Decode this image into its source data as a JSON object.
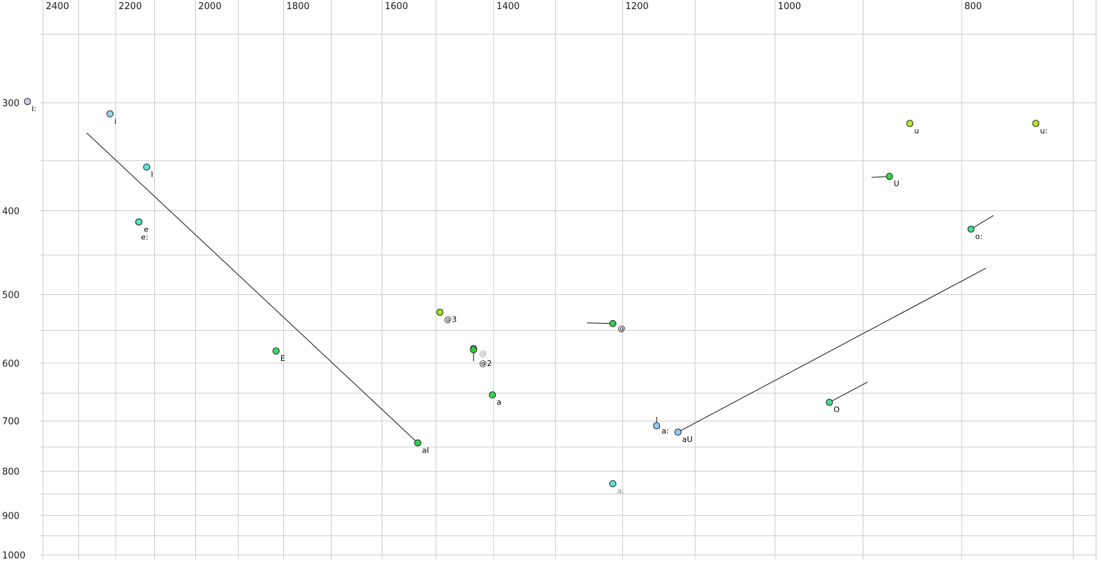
{
  "chart_data": {
    "type": "scatter",
    "title": "",
    "xlabel": "",
    "ylabel": "",
    "x_axis": {
      "position": "top",
      "scale": "log",
      "reversed": true,
      "unit": "Hz",
      "tick_labels": [
        2400,
        2200,
        2000,
        1800,
        1600,
        1400,
        1200,
        1000,
        800
      ],
      "grid_from": 2400,
      "grid_to": 700,
      "grid_step": 100
    },
    "y_axis": {
      "position": "left",
      "scale": "log",
      "increases_downward": true,
      "unit": "Hz",
      "tick_labels": [
        300,
        400,
        500,
        600,
        700,
        800,
        900,
        1000
      ],
      "grid_from": 250,
      "grid_to": 1000,
      "grid_step": 50
    },
    "legend": "none",
    "grid": true,
    "points": [
      {
        "label": "i:",
        "f2": 2445,
        "f1": 299,
        "fill": "#d4c9f2"
      },
      {
        "label": "i",
        "f2": 2215,
        "f1": 309,
        "fill": "#92d8ec"
      },
      {
        "label": "I",
        "f2": 2120,
        "f1": 356,
        "fill": "#5fe2e2"
      },
      {
        "label": "e:",
        "f2": 2140,
        "f1": 412,
        "fill": "#55e6c1",
        "label_offset": [
          3,
          25
        ]
      },
      {
        "label": "e",
        "f2": 2140,
        "f1": 412,
        "fill": "#55e6c1",
        "label_offset": [
          7,
          14
        ]
      },
      {
        "label": "E",
        "f2": 1816,
        "f1": 581,
        "fill": "#3cdc6d"
      },
      {
        "label": "aI",
        "f2": 1533,
        "f1": 742,
        "fill": "#2fd04e",
        "traj": {
          "f2": 2278,
          "f1": 325
        }
      },
      {
        "label": "@3",
        "f2": 1493,
        "f1": 524,
        "fill": "#a6e818"
      },
      {
        "label": "@",
        "f2": 1434,
        "f1": 577,
        "fill": "#5fe2d6",
        "label_color": "#9a9a9a",
        "label_offset": [
          8,
          11
        ]
      },
      {
        "label": "@2",
        "f2": 1434,
        "f1": 579,
        "fill": "#2bd12b",
        "traj": {
          "f2": 1434,
          "f1": 597
        },
        "label_offset": [
          8,
          23
        ]
      },
      {
        "label": "a",
        "f2": 1402,
        "f1": 653,
        "fill": "#3ad54a"
      },
      {
        "label": "@",
        "f2": 1214,
        "f1": 540,
        "fill": "#2fd04e",
        "traj": {
          "f2": 1252,
          "f1": 539
        },
        "label_offset": [
          7,
          11
        ]
      },
      {
        "label": "a:",
        "f2": 1152,
        "f1": 709,
        "fill": "#92c9f2",
        "traj": {
          "f2": 1152,
          "f1": 692
        },
        "label_offset": [
          7,
          11
        ]
      },
      {
        "label": "aU",
        "f2": 1123,
        "f1": 721,
        "fill": "#92c9f2",
        "traj": {
          "f2": 777,
          "f1": 466
        }
      },
      {
        "label": "a:",
        "f2": 1214,
        "f1": 827,
        "fill": "#5fe2d6",
        "label_color": "#9a9a9a"
      },
      {
        "label": "O",
        "f2": 937,
        "f1": 666,
        "fill": "#3ce29a",
        "traj": {
          "f2": 895,
          "f1": 631
        }
      },
      {
        "label": "o:",
        "f2": 791,
        "f1": 420,
        "fill": "#3cdf85",
        "traj": {
          "f2": 770,
          "f1": 405
        }
      },
      {
        "label": "U",
        "f2": 872,
        "f1": 365,
        "fill": "#36d648",
        "traj": {
          "f2": 891,
          "f1": 366
        }
      },
      {
        "label": "u",
        "f2": 851,
        "f1": 317,
        "fill": "#b4ec14"
      },
      {
        "label": "u:",
        "f2": 732,
        "f1": 317,
        "fill": "#b4ec14"
      }
    ],
    "colors": {
      "background": "#ffffff",
      "grid": "#cccccc",
      "frame": "#c4c4c4",
      "trajectory": "#111111",
      "point_stroke": "#222222",
      "tick_text": "#1a1a1a",
      "point_text": "#000000"
    }
  }
}
